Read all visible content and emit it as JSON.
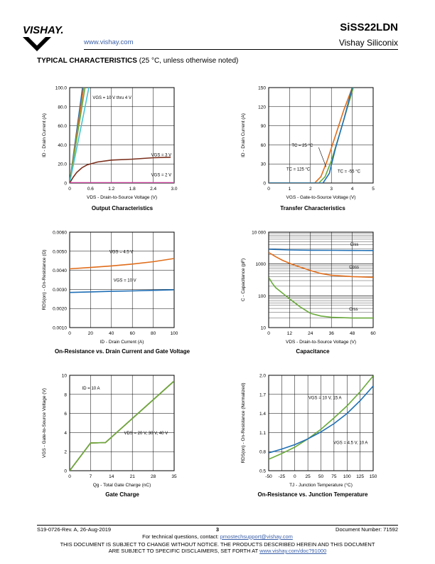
{
  "header": {
    "logo_text": "VISHAY.",
    "url": "www.vishay.com",
    "part_number": "SiSS22LDN",
    "company": "Vishay Siliconix"
  },
  "section": {
    "title": "TYPICAL CHARACTERISTICS",
    "subtitle": "(25 °C, unless otherwise noted)"
  },
  "chart_data": [
    {
      "id": "output",
      "type": "line",
      "title": "Output Characteristics",
      "xlabel": "VDS - Drain-to-Source Voltage (V)",
      "ylabel": "ID - Drain Current (A)",
      "xlim": [
        0,
        3.0
      ],
      "ylim": [
        0,
        100
      ],
      "xticks": [
        "0",
        "0.6",
        "1.2",
        "1.8",
        "2.4",
        "3.0"
      ],
      "yticks": [
        "0",
        "20.0",
        "40.0",
        "60.0",
        "80.0",
        "100.0"
      ],
      "grid": true,
      "annotations": [
        "VGS = 10 V thru 4 V",
        "VGS = 3 V",
        "VGS = 2 V"
      ],
      "series": [
        {
          "color": "#1f6fb5",
          "x": [
            0,
            0.1,
            0.2,
            0.3,
            0.37
          ],
          "y": [
            0,
            27,
            54,
            81,
            100
          ]
        },
        {
          "color": "#e06d1b",
          "x": [
            0,
            0.1,
            0.2,
            0.3,
            0.4
          ],
          "y": [
            0,
            25,
            50,
            75,
            100
          ]
        },
        {
          "color": "#6aaa3c",
          "x": [
            0,
            0.1,
            0.2,
            0.3,
            0.44
          ],
          "y": [
            0,
            23,
            46,
            68,
            100
          ]
        },
        {
          "color": "#45c3d6",
          "x": [
            0,
            0.1,
            0.2,
            0.3,
            0.4,
            0.55
          ],
          "y": [
            0,
            18,
            36,
            54,
            72,
            100
          ]
        },
        {
          "color": "#7a2e1c",
          "x": [
            0,
            0.1,
            0.2,
            0.35,
            0.5,
            0.8,
            1.2,
            1.8,
            2.4,
            2.9
          ],
          "y": [
            0,
            6,
            11,
            16,
            19,
            22,
            24,
            25,
            26.5,
            27
          ]
        },
        {
          "color": "#c8409a",
          "x": [
            0,
            3.0
          ],
          "y": [
            0.3,
            0.4
          ]
        }
      ]
    },
    {
      "id": "transfer",
      "type": "line",
      "title": "Transfer Characteristics",
      "xlabel": "VGS - Gate-to-Source Voltage (V)",
      "ylabel": "ID - Drain Current (A)",
      "xlim": [
        0,
        5
      ],
      "ylim": [
        0,
        150
      ],
      "xticks": [
        "0",
        "1",
        "2",
        "3",
        "4",
        "5"
      ],
      "yticks": [
        "0",
        "30",
        "60",
        "90",
        "120",
        "150"
      ],
      "grid": true,
      "annotations": [
        "TC = 25 °C",
        "TC = 125 °C",
        "TC = -55 °C"
      ],
      "series": [
        {
          "color": "#e06d1b",
          "x": [
            0,
            2.2,
            2.5,
            2.8,
            3.2,
            3.6,
            4.0
          ],
          "y": [
            0,
            0,
            10,
            35,
            75,
            115,
            150
          ]
        },
        {
          "color": "#6aaa3c",
          "x": [
            0,
            2.4,
            2.7,
            3.0,
            3.4,
            3.8,
            4.05
          ],
          "y": [
            0,
            0,
            10,
            35,
            78,
            122,
            150
          ]
        },
        {
          "color": "#1f6fb5",
          "x": [
            0,
            2.6,
            2.9,
            3.2,
            3.6,
            4.0
          ],
          "y": [
            0,
            0,
            15,
            55,
            100,
            150
          ]
        }
      ]
    },
    {
      "id": "rdson",
      "type": "line",
      "title": "On-Resistance vs. Drain Current and Gate Voltage",
      "xlabel": "ID - Drain Current (A)",
      "ylabel": "RDS(on) - On-Resistance (Ω)",
      "xlim": [
        0,
        100
      ],
      "ylim": [
        0.001,
        0.006
      ],
      "xticks": [
        "0",
        "20",
        "40",
        "60",
        "80",
        "100"
      ],
      "yticks": [
        "0.0010",
        "0.0020",
        "0.0030",
        "0.0040",
        "0.0050",
        "0.0060"
      ],
      "grid": true,
      "annotations": [
        "VGS = 4.5 V",
        "VGS = 10 V"
      ],
      "series": [
        {
          "color": "#e06d1b",
          "x": [
            0,
            20,
            40,
            60,
            80,
            100
          ],
          "y": [
            0.00408,
            0.00415,
            0.00423,
            0.00433,
            0.00445,
            0.00462
          ]
        },
        {
          "color": "#1f6fb5",
          "x": [
            0,
            20,
            40,
            60,
            80,
            100
          ],
          "y": [
            0.00284,
            0.00287,
            0.0029,
            0.00292,
            0.00295,
            0.00298
          ]
        }
      ]
    },
    {
      "id": "capacitance",
      "type": "line",
      "title": "Capacitance",
      "xlabel": "VDS - Drain-to-Source Voltage (V)",
      "ylabel": "C - Capacitance (pF)",
      "xlim": [
        0,
        60
      ],
      "ylim": [
        10,
        10000
      ],
      "log_y": true,
      "xticks": [
        "0",
        "12",
        "24",
        "36",
        "48",
        "60"
      ],
      "yticks": [
        "10",
        "100",
        "1000",
        "10 000"
      ],
      "grid": true,
      "annotations": [
        "Ciss",
        "Coss",
        "Crss"
      ],
      "series": [
        {
          "color": "#1f6fb5",
          "x": [
            0,
            12,
            24,
            36,
            48,
            60
          ],
          "y": [
            2900,
            2750,
            2700,
            2680,
            2660,
            2650
          ]
        },
        {
          "color": "#e06d1b",
          "x": [
            0,
            4,
            8,
            12,
            18,
            24,
            30,
            36,
            48,
            60
          ],
          "y": [
            2300,
            1700,
            1300,
            1050,
            800,
            620,
            500,
            440,
            400,
            380
          ]
        },
        {
          "color": "#6aaa3c",
          "x": [
            0,
            2,
            4,
            8,
            12,
            18,
            24,
            30,
            36,
            48,
            60
          ],
          "y": [
            380,
            250,
            180,
            120,
            80,
            45,
            28,
            23,
            21,
            20,
            20
          ]
        }
      ]
    },
    {
      "id": "gatecharge",
      "type": "line",
      "title": "Gate Charge",
      "xlabel": "Qg - Total Gate Charge (nC)",
      "ylabel": "VGS - Gate-to-Source Voltage (V)",
      "xlim": [
        0,
        35
      ],
      "ylim": [
        0,
        10
      ],
      "xticks": [
        "0",
        "7",
        "14",
        "21",
        "28",
        "35"
      ],
      "yticks": [
        "0",
        "2",
        "4",
        "6",
        "8",
        "10"
      ],
      "grid": true,
      "annotations": [
        "ID = 10 A",
        "VDS = 20 V, 30 V, 40 V"
      ],
      "series": [
        {
          "color": "#1f6fb5",
          "x": [
            0,
            7,
            12,
            35
          ],
          "y": [
            0,
            2.9,
            2.95,
            9.4
          ]
        },
        {
          "color": "#e06d1b",
          "x": [
            0,
            7,
            12,
            35
          ],
          "y": [
            0,
            2.9,
            2.95,
            9.4
          ]
        },
        {
          "color": "#6aaa3c",
          "x": [
            0,
            7,
            12,
            35
          ],
          "y": [
            0,
            2.9,
            2.95,
            9.4
          ]
        }
      ]
    },
    {
      "id": "rdson_temp",
      "type": "line",
      "title": "On-Resistance vs. Junction Temperature",
      "xlabel": "TJ - Junction Temperature (°C)",
      "ylabel": "RDS(on) - On-Resistance (Normalized)",
      "xlim": [
        -50,
        150
      ],
      "ylim": [
        0.5,
        2.0
      ],
      "xticks": [
        "-50",
        "-25",
        "0",
        "25",
        "50",
        "75",
        "100",
        "125",
        "150"
      ],
      "yticks": [
        "0.5",
        "0.8",
        "1.1",
        "1.4",
        "1.7",
        "2.0"
      ],
      "grid": true,
      "annotations": [
        "VGS = 10 V, 15 A",
        "VGS = 4.5 V, 10 A"
      ],
      "series": [
        {
          "color": "#6aaa3c",
          "x": [
            -50,
            -25,
            0,
            25,
            50,
            75,
            100,
            125,
            150
          ],
          "y": [
            0.68,
            0.77,
            0.87,
            1.0,
            1.15,
            1.33,
            1.52,
            1.74,
            1.99
          ]
        },
        {
          "color": "#1f6fb5",
          "x": [
            -50,
            -25,
            0,
            25,
            50,
            75,
            100,
            125,
            150
          ],
          "y": [
            0.78,
            0.84,
            0.91,
            1.0,
            1.11,
            1.24,
            1.4,
            1.6,
            1.83
          ]
        }
      ]
    }
  ],
  "footer": {
    "doc_rev": "S19-0726-Rev. A, 26-Aug-2019",
    "page": "3",
    "doc_number": "Document Number: 71592",
    "contact": "For technical questions, contact:",
    "contact_email": "pmostechsupport@vishay.com",
    "disclaimer1": "THIS DOCUMENT IS SUBJECT TO CHANGE WITHOUT NOTICE. THE PRODUCTS DESCRIBED HEREIN AND THIS DOCUMENT",
    "disclaimer2": "ARE SUBJECT TO SPECIFIC DISCLAIMERS, SET FORTH AT",
    "disclaimer_link": "www.vishay.com/doc?91000"
  }
}
